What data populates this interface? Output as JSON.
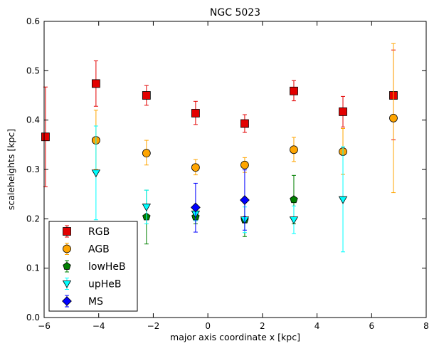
{
  "chart_data": {
    "type": "scatter",
    "title": "NGC 5023",
    "xlabel": "major axis coordinate x [kpc]",
    "ylabel": "scaleheights [kpc]",
    "xlim": [
      -6,
      8
    ],
    "ylim": [
      0.0,
      0.6
    ],
    "xticks": [
      -6,
      -4,
      -2,
      0,
      2,
      4,
      6,
      8
    ],
    "yticks": [
      0.0,
      0.1,
      0.2,
      0.3,
      0.4,
      0.5,
      0.6
    ],
    "xtick_labels": [
      "−6",
      "−4",
      "−2",
      "0",
      "2",
      "4",
      "6",
      "8"
    ],
    "ytick_labels": [
      "0.0",
      "0.1",
      "0.2",
      "0.3",
      "0.4",
      "0.5",
      "0.6"
    ],
    "grid": false,
    "legend_position": "bottom-left",
    "series": [
      {
        "name": "RGB",
        "marker": "square",
        "color": "#e30000",
        "error_color": "#e30000",
        "points": [
          {
            "x": -5.95,
            "y": 0.366,
            "ylo": 0.265,
            "yhi": 0.467
          },
          {
            "x": -4.1,
            "y": 0.474,
            "ylo": 0.428,
            "yhi": 0.52
          },
          {
            "x": -2.25,
            "y": 0.45,
            "ylo": 0.43,
            "yhi": 0.47
          },
          {
            "x": -0.45,
            "y": 0.414,
            "ylo": 0.391,
            "yhi": 0.438
          },
          {
            "x": 1.35,
            "y": 0.393,
            "ylo": 0.375,
            "yhi": 0.411
          },
          {
            "x": 3.15,
            "y": 0.459,
            "ylo": 0.439,
            "yhi": 0.48
          },
          {
            "x": 4.95,
            "y": 0.417,
            "ylo": 0.386,
            "yhi": 0.448
          },
          {
            "x": 6.8,
            "y": 0.45,
            "ylo": 0.36,
            "yhi": 0.542
          }
        ]
      },
      {
        "name": "AGB",
        "marker": "circle",
        "color": "#ffa500",
        "error_color": "#ffa500",
        "points": [
          {
            "x": -4.1,
            "y": 0.359,
            "ylo": 0.3,
            "yhi": 0.42
          },
          {
            "x": -2.25,
            "y": 0.333,
            "ylo": 0.309,
            "yhi": 0.359
          },
          {
            "x": -0.45,
            "y": 0.304,
            "ylo": 0.289,
            "yhi": 0.32
          },
          {
            "x": 1.35,
            "y": 0.309,
            "ylo": 0.294,
            "yhi": 0.324
          },
          {
            "x": 3.15,
            "y": 0.34,
            "ylo": 0.316,
            "yhi": 0.365
          },
          {
            "x": 4.95,
            "y": 0.336,
            "ylo": 0.29,
            "yhi": 0.383
          },
          {
            "x": 6.8,
            "y": 0.404,
            "ylo": 0.253,
            "yhi": 0.555
          }
        ]
      },
      {
        "name": "lowHeB",
        "marker": "pentagon",
        "color": "#007f00",
        "error_color": "#007f00",
        "points": [
          {
            "x": -2.25,
            "y": 0.204,
            "ylo": 0.149,
            "yhi": 0.258
          },
          {
            "x": -0.45,
            "y": 0.204,
            "ylo": 0.19,
            "yhi": 0.22
          },
          {
            "x": 1.35,
            "y": 0.198,
            "ylo": 0.164,
            "yhi": 0.233
          },
          {
            "x": 3.15,
            "y": 0.239,
            "ylo": 0.19,
            "yhi": 0.288
          }
        ]
      },
      {
        "name": "upHeB",
        "marker": "triangle-down",
        "color": "#00ffff",
        "error_color": "#00ffff",
        "points": [
          {
            "x": -4.1,
            "y": 0.293,
            "ylo": 0.198,
            "yhi": 0.388
          },
          {
            "x": -2.25,
            "y": 0.224,
            "ylo": 0.19,
            "yhi": 0.258
          },
          {
            "x": -0.45,
            "y": 0.21,
            "ylo": 0.196,
            "yhi": 0.224
          },
          {
            "x": 1.35,
            "y": 0.198,
            "ylo": 0.172,
            "yhi": 0.224
          },
          {
            "x": 3.15,
            "y": 0.198,
            "ylo": 0.17,
            "yhi": 0.226
          },
          {
            "x": 4.95,
            "y": 0.239,
            "ylo": 0.133,
            "yhi": 0.346
          }
        ]
      },
      {
        "name": "MS",
        "marker": "diamond",
        "color": "#0000ff",
        "error_color": "#0000ff",
        "points": [
          {
            "x": -0.45,
            "y": 0.223,
            "ylo": 0.173,
            "yhi": 0.272
          },
          {
            "x": 1.35,
            "y": 0.238,
            "ylo": 0.177,
            "yhi": 0.299
          }
        ]
      }
    ]
  }
}
